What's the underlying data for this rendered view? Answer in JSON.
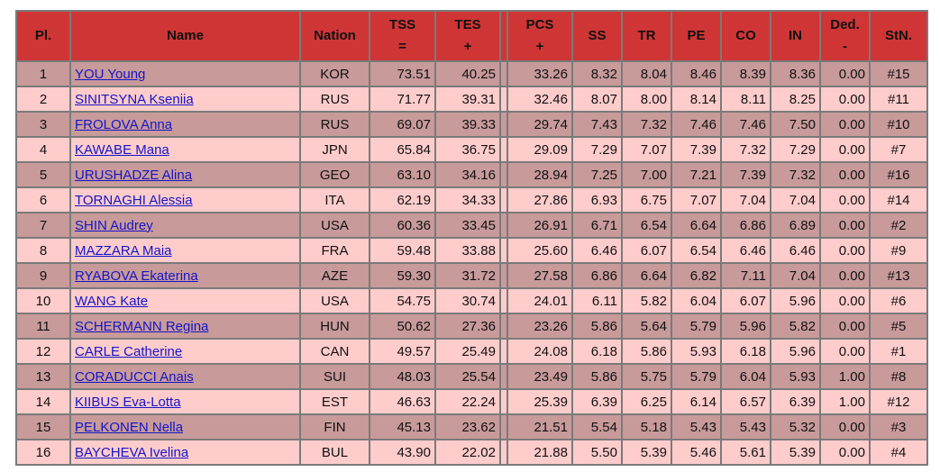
{
  "headers": {
    "pl": "Pl.",
    "name": "Name",
    "nation": "Nation",
    "tss": "TSS",
    "tss_sub": "=",
    "tes": "TES",
    "tes_sub": "+",
    "pcs": "PCS",
    "pcs_sub": "+",
    "ss": "SS",
    "tr": "TR",
    "pe": "PE",
    "co": "CO",
    "in": "IN",
    "ded": "Ded.",
    "ded_sub": "-",
    "stn": "StN."
  },
  "rows": [
    {
      "pl": "1",
      "name": "YOU Young",
      "nation": "KOR",
      "tss": "73.51",
      "tes": "40.25",
      "pcs": "33.26",
      "ss": "8.32",
      "tr": "8.04",
      "pe": "8.46",
      "co": "8.39",
      "in": "8.36",
      "ded": "0.00",
      "stn": "#15"
    },
    {
      "pl": "2",
      "name": "SINITSYNA Kseniia",
      "nation": "RUS",
      "tss": "71.77",
      "tes": "39.31",
      "pcs": "32.46",
      "ss": "8.07",
      "tr": "8.00",
      "pe": "8.14",
      "co": "8.11",
      "in": "8.25",
      "ded": "0.00",
      "stn": "#11"
    },
    {
      "pl": "3",
      "name": "FROLOVA Anna",
      "nation": "RUS",
      "tss": "69.07",
      "tes": "39.33",
      "pcs": "29.74",
      "ss": "7.43",
      "tr": "7.32",
      "pe": "7.46",
      "co": "7.46",
      "in": "7.50",
      "ded": "0.00",
      "stn": "#10"
    },
    {
      "pl": "4",
      "name": "KAWABE Mana",
      "nation": "JPN",
      "tss": "65.84",
      "tes": "36.75",
      "pcs": "29.09",
      "ss": "7.29",
      "tr": "7.07",
      "pe": "7.39",
      "co": "7.32",
      "in": "7.29",
      "ded": "0.00",
      "stn": "#7"
    },
    {
      "pl": "5",
      "name": "URUSHADZE Alina",
      "nation": "GEO",
      "tss": "63.10",
      "tes": "34.16",
      "pcs": "28.94",
      "ss": "7.25",
      "tr": "7.00",
      "pe": "7.21",
      "co": "7.39",
      "in": "7.32",
      "ded": "0.00",
      "stn": "#16"
    },
    {
      "pl": "6",
      "name": "TORNAGHI Alessia",
      "nation": "ITA",
      "tss": "62.19",
      "tes": "34.33",
      "pcs": "27.86",
      "ss": "6.93",
      "tr": "6.75",
      "pe": "7.07",
      "co": "7.04",
      "in": "7.04",
      "ded": "0.00",
      "stn": "#14"
    },
    {
      "pl": "7",
      "name": "SHIN Audrey",
      "nation": "USA",
      "tss": "60.36",
      "tes": "33.45",
      "pcs": "26.91",
      "ss": "6.71",
      "tr": "6.54",
      "pe": "6.64",
      "co": "6.86",
      "in": "6.89",
      "ded": "0.00",
      "stn": "#2"
    },
    {
      "pl": "8",
      "name": "MAZZARA Maia",
      "nation": "FRA",
      "tss": "59.48",
      "tes": "33.88",
      "pcs": "25.60",
      "ss": "6.46",
      "tr": "6.07",
      "pe": "6.54",
      "co": "6.46",
      "in": "6.46",
      "ded": "0.00",
      "stn": "#9"
    },
    {
      "pl": "9",
      "name": "RYABOVA Ekaterina",
      "nation": "AZE",
      "tss": "59.30",
      "tes": "31.72",
      "pcs": "27.58",
      "ss": "6.86",
      "tr": "6.64",
      "pe": "6.82",
      "co": "7.11",
      "in": "7.04",
      "ded": "0.00",
      "stn": "#13"
    },
    {
      "pl": "10",
      "name": "WANG Kate",
      "nation": "USA",
      "tss": "54.75",
      "tes": "30.74",
      "pcs": "24.01",
      "ss": "6.11",
      "tr": "5.82",
      "pe": "6.04",
      "co": "6.07",
      "in": "5.96",
      "ded": "0.00",
      "stn": "#6"
    },
    {
      "pl": "11",
      "name": "SCHERMANN Regina",
      "nation": "HUN",
      "tss": "50.62",
      "tes": "27.36",
      "pcs": "23.26",
      "ss": "5.86",
      "tr": "5.64",
      "pe": "5.79",
      "co": "5.96",
      "in": "5.82",
      "ded": "0.00",
      "stn": "#5"
    },
    {
      "pl": "12",
      "name": "CARLE Catherine",
      "nation": "CAN",
      "tss": "49.57",
      "tes": "25.49",
      "pcs": "24.08",
      "ss": "6.18",
      "tr": "5.86",
      "pe": "5.93",
      "co": "6.18",
      "in": "5.96",
      "ded": "0.00",
      "stn": "#1"
    },
    {
      "pl": "13",
      "name": "CORADUCCI Anais",
      "nation": "SUI",
      "tss": "48.03",
      "tes": "25.54",
      "pcs": "23.49",
      "ss": "5.86",
      "tr": "5.75",
      "pe": "5.79",
      "co": "6.04",
      "in": "5.93",
      "ded": "1.00",
      "stn": "#8"
    },
    {
      "pl": "14",
      "name": "KIIBUS Eva-Lotta",
      "nation": "EST",
      "tss": "46.63",
      "tes": "22.24",
      "pcs": "25.39",
      "ss": "6.39",
      "tr": "6.25",
      "pe": "6.14",
      "co": "6.57",
      "in": "6.39",
      "ded": "1.00",
      "stn": "#12"
    },
    {
      "pl": "15",
      "name": "PELKONEN Nella",
      "nation": "FIN",
      "tss": "45.13",
      "tes": "23.62",
      "pcs": "21.51",
      "ss": "5.54",
      "tr": "5.18",
      "pe": "5.43",
      "co": "5.43",
      "in": "5.32",
      "ded": "0.00",
      "stn": "#3"
    },
    {
      "pl": "16",
      "name": "BAYCHEVA Ivelina",
      "nation": "BUL",
      "tss": "43.90",
      "tes": "22.02",
      "pcs": "21.88",
      "ss": "5.50",
      "tr": "5.39",
      "pe": "5.46",
      "co": "5.61",
      "in": "5.39",
      "ded": "0.00",
      "stn": "#4"
    }
  ],
  "colors": {
    "header_bg": "#cf3535",
    "row_odd": "#c89a9a",
    "row_even": "#ffcccc",
    "link": "#1515c8"
  }
}
